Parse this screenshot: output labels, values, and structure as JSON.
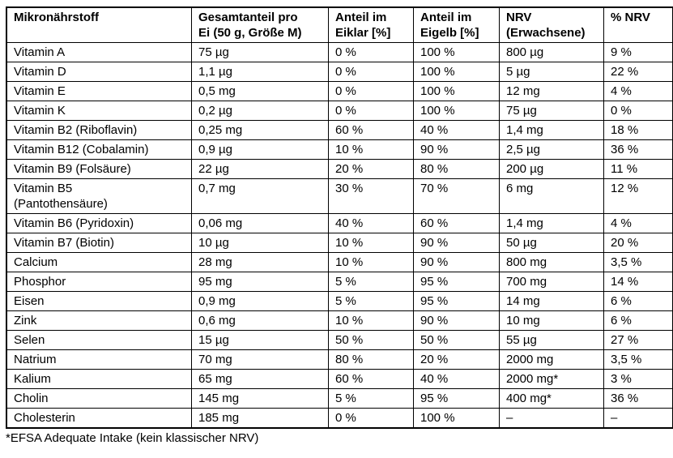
{
  "table": {
    "headers": [
      {
        "lines": [
          "Mikronährstoff"
        ]
      },
      {
        "lines": [
          "Gesamtanteil pro",
          "Ei (50 g, Größe M)"
        ]
      },
      {
        "lines": [
          "Anteil im",
          "Eiklar [%]"
        ]
      },
      {
        "lines": [
          "Anteil im",
          "Eigelb [%]"
        ]
      },
      {
        "lines": [
          "NRV",
          "(Erwachsene)"
        ]
      },
      {
        "lines": [
          "% NRV"
        ]
      }
    ],
    "rows": [
      [
        "Vitamin A",
        "75 µg",
        "0 %",
        "100 %",
        "800 µg",
        "9 %"
      ],
      [
        "Vitamin D",
        "1,1 µg",
        "0 %",
        "100 %",
        "5 µg",
        "22 %"
      ],
      [
        "Vitamin E",
        "0,5 mg",
        "0 %",
        "100 %",
        "12 mg",
        "4 %"
      ],
      [
        "Vitamin K",
        "0,2 µg",
        "0 %",
        "100 %",
        "75 µg",
        "0 %"
      ],
      [
        "Vitamin B2 (Riboflavin)",
        "0,25 mg",
        "60 %",
        "40 %",
        "1,4 mg",
        "18 %"
      ],
      [
        "Vitamin B12 (Cobalamin)",
        "0,9 µg",
        "10 %",
        "90 %",
        "2,5 µg",
        "36 %"
      ],
      [
        "Vitamin B9 (Folsäure)",
        "22 µg",
        "20 %",
        "80 %",
        "200 µg",
        "11 %"
      ],
      [
        "Vitamin B5\n(Pantothensäure)",
        "0,7 mg",
        "30 %",
        "70 %",
        "6 mg",
        "12 %"
      ],
      [
        "Vitamin B6 (Pyridoxin)",
        "0,06 mg",
        "40 %",
        "60 %",
        "1,4 mg",
        "4 %"
      ],
      [
        "Vitamin B7 (Biotin)",
        "10 µg",
        "10 %",
        "90 %",
        "50 µg",
        "20 %"
      ],
      [
        "Calcium",
        "28 mg",
        "10 %",
        "90 %",
        "800 mg",
        "3,5 %"
      ],
      [
        "Phosphor",
        "95 mg",
        "5 %",
        "95 %",
        "700 mg",
        "14 %"
      ],
      [
        "Eisen",
        "0,9 mg",
        "5 %",
        "95 %",
        "14 mg",
        "6 %"
      ],
      [
        "Zink",
        "0,6 mg",
        "10 %",
        "90 %",
        "10 mg",
        "6 %"
      ],
      [
        "Selen",
        "15 µg",
        "50 %",
        "50 %",
        "55 µg",
        "27 %"
      ],
      [
        "Natrium",
        "70 mg",
        "80 %",
        "20 %",
        "2000 mg",
        "3,5 %"
      ],
      [
        "Kalium",
        "65 mg",
        "60 %",
        "40 %",
        "2000 mg*",
        "3 %"
      ],
      [
        "Cholin",
        "145 mg",
        "5 %",
        "95 %",
        "400 mg*",
        "36 %"
      ],
      [
        "Cholesterin",
        "185 mg",
        "0 %",
        "100 %",
        "–",
        "–"
      ]
    ]
  },
  "footnote": "*EFSA Adequate Intake (kein klassischer NRV)"
}
